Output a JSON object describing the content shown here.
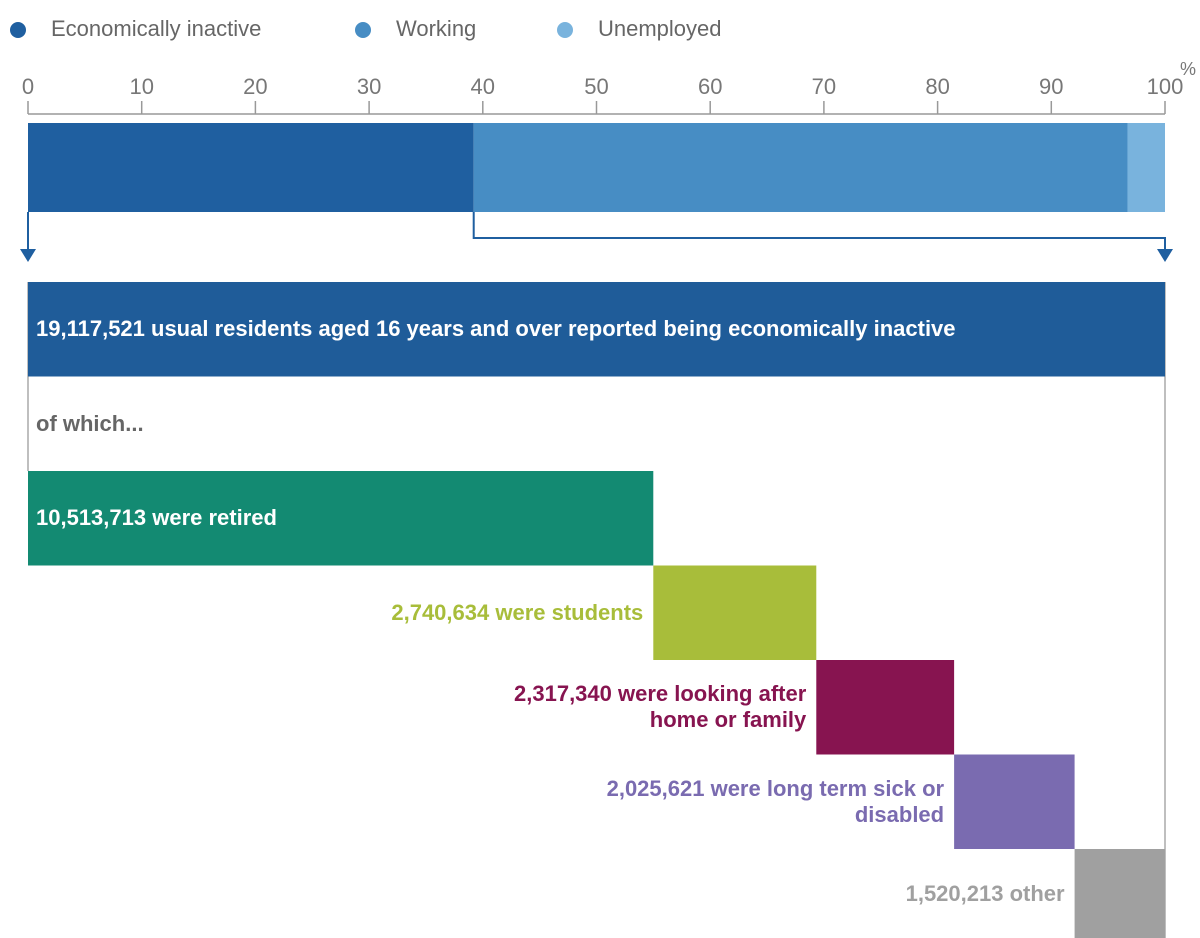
{
  "chart_data": [
    {
      "type": "stacked_bar",
      "series": [
        {
          "name": "Economically inactive",
          "color": "#1f5fa0",
          "values": [
            39.2
          ]
        },
        {
          "name": "Working",
          "color": "#478dc4",
          "values": [
            57.5
          ]
        },
        {
          "name": "Unemployed",
          "color": "#79b3dd",
          "values": [
            3.3
          ]
        }
      ],
      "xlim": [
        0,
        100
      ],
      "xticks": [
        0,
        10,
        20,
        30,
        40,
        50,
        60,
        70,
        80,
        90,
        100
      ],
      "xlabel": "%"
    },
    {
      "type": "waterfall",
      "total": 19117521,
      "total_label": "19,117,521 usual residents aged 16 years and over reported being economically inactive",
      "total_color": "#1f5c99",
      "annotation": "of which...",
      "values": [
        10513713,
        2740634,
        2317340,
        2025621,
        1520213
      ],
      "value_labels": [
        "10,513,713 were retired",
        "2,740,634 were students",
        "2,317,340 were looking after home or family",
        "2,025,621 were long term sick or disabled",
        "1,520,213 other"
      ],
      "colors": [
        "#138a72",
        "#a8bd3a",
        "#871450",
        "#7a6bb0",
        "#a0a0a0"
      ]
    }
  ]
}
